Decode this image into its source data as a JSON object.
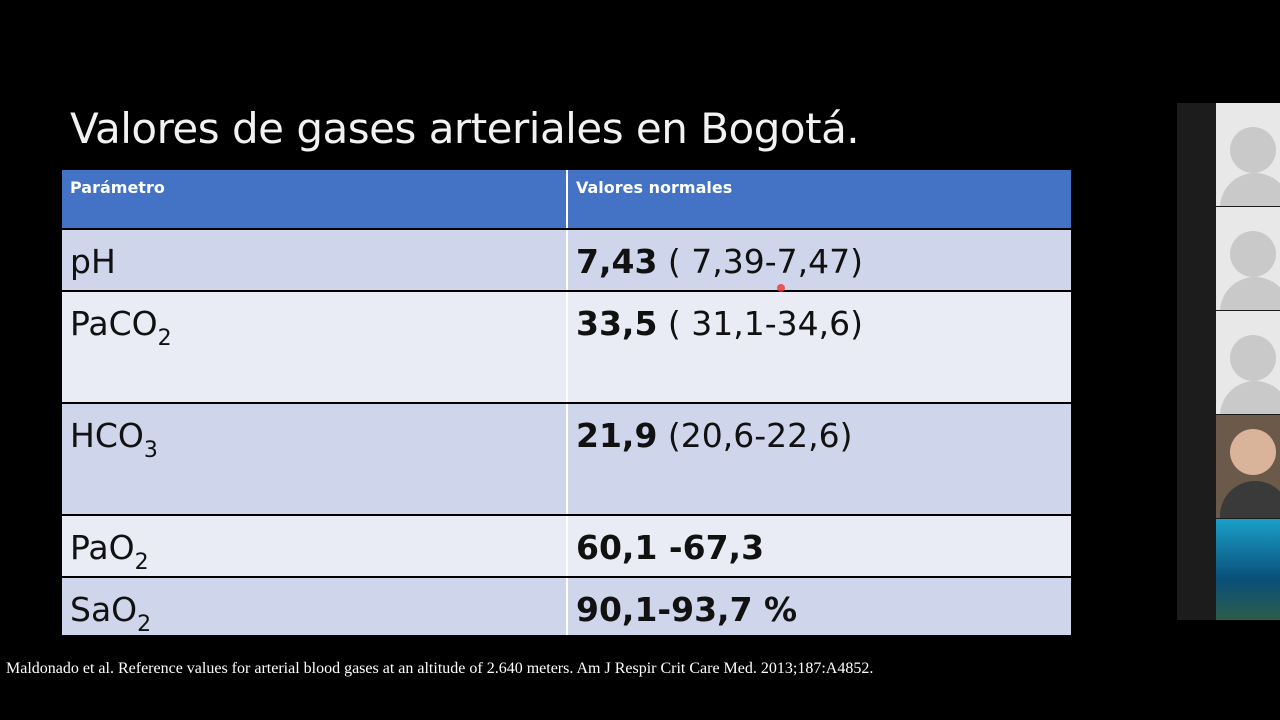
{
  "title": "Valores de gases arteriales en Bogotá.",
  "table": {
    "header": [
      "Parámetro",
      "Valores normales"
    ],
    "rows": [
      {
        "parameter": {
          "base": "pH"
        },
        "value": {
          "bold": "7,43",
          "rest": "( 7,39-7,47)"
        }
      },
      {
        "parameter": {
          "base": "PaCO",
          "sub": "2"
        },
        "value": {
          "bold": "33,5",
          "rest": "( 31,1-34,6)"
        }
      },
      {
        "parameter": {
          "base": "HCO",
          "sub": "3"
        },
        "value": {
          "bold": "21,9",
          "rest": "(20,6-22,6)"
        }
      },
      {
        "parameter": {
          "base": "PaO",
          "sub": "2"
        },
        "value": {
          "bold": "60,1 -67,3"
        }
      },
      {
        "parameter": {
          "base": "SaO",
          "sub": "2"
        },
        "value": {
          "bold": "90,1-93,7 %"
        }
      }
    ]
  },
  "citation": "Maldonado et al. Reference values for arterial blood gases at an altitude of 2.640 meters. Am J Respir Crit Care Med. 2013;187:A4852."
}
